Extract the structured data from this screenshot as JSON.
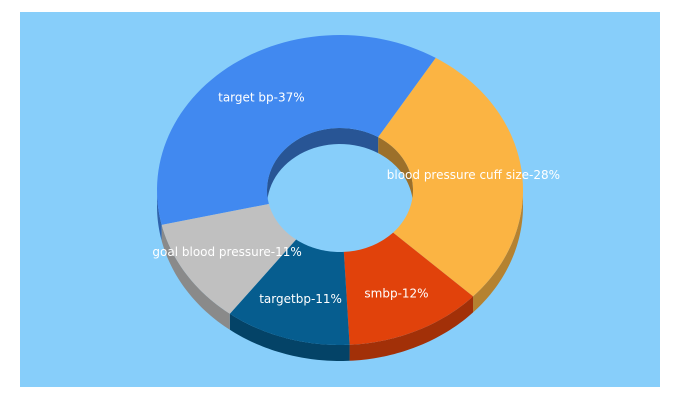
{
  "chart_data": {
    "type": "pie",
    "style": "3d-donut",
    "background_color": "#87cefa",
    "slices": [
      {
        "label": "target bp-37%",
        "name": "target bp",
        "value": 37,
        "color": "#4189f0"
      },
      {
        "label": "blood pressure cuff size-28%",
        "name": "blood pressure cuff size",
        "value": 28,
        "color": "#fbb443"
      },
      {
        "label": "smbp-12%",
        "name": "smbp",
        "value": 12,
        "color": "#e1420b"
      },
      {
        "label": "targetbp-11%",
        "name": "targetbp",
        "value": 11,
        "color": "#065d8f"
      },
      {
        "label": "goal blood pressure-11%",
        "name": "goal blood pressure",
        "value": 11,
        "color": "#c0c0c0"
      }
    ]
  }
}
